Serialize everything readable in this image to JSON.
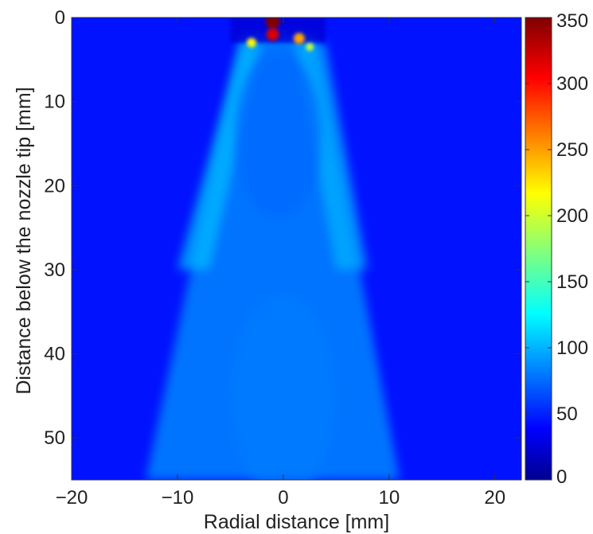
{
  "chart_data": {
    "type": "heatmap",
    "xlabel": "Radial distance [mm]",
    "ylabel": "Distance below the nozzle tip [mm]",
    "xlim": [
      -20,
      22.5
    ],
    "ylim": [
      0,
      55
    ],
    "y_axis_inverted": true,
    "x_ticks": [
      -20,
      -10,
      0,
      10,
      20
    ],
    "x_tick_labels": [
      "−20",
      "−10",
      "0",
      "10",
      "20"
    ],
    "y_ticks": [
      0,
      10,
      20,
      30,
      40,
      50
    ],
    "y_tick_labels": [
      "0",
      "10",
      "20",
      "30",
      "40",
      "50"
    ],
    "colorbar": {
      "range": [
        0,
        350
      ],
      "ticks": [
        0,
        50,
        100,
        150,
        200,
        250,
        300,
        350
      ],
      "tick_labels": [
        "0",
        "50",
        "100",
        "150",
        "200",
        "250",
        "300",
        "350"
      ],
      "colormap": "jet"
    },
    "colors": {
      "background": "#2f57b8",
      "low": "#00008f",
      "high": "#7f0000"
    },
    "description_values": {
      "background_level": 50,
      "spray_body_level": 95,
      "spray_edge_level": 110,
      "core_low_level": 80,
      "nozzle_peak_level": 330
    },
    "spray_cone": {
      "apex_y": 2,
      "apex_halfwidth": 3,
      "bottom_y": 55,
      "bottom_halfwidth": 12,
      "center_x": -1
    },
    "hotspots": [
      {
        "x": -1,
        "y": 0.5,
        "value": 350
      },
      {
        "x": -1,
        "y": 2,
        "value": 320
      },
      {
        "x": 1.5,
        "y": 2.5,
        "value": 250
      },
      {
        "x": -3,
        "y": 3,
        "value": 220
      },
      {
        "x": 2.5,
        "y": 3.5,
        "value": 200
      }
    ]
  }
}
